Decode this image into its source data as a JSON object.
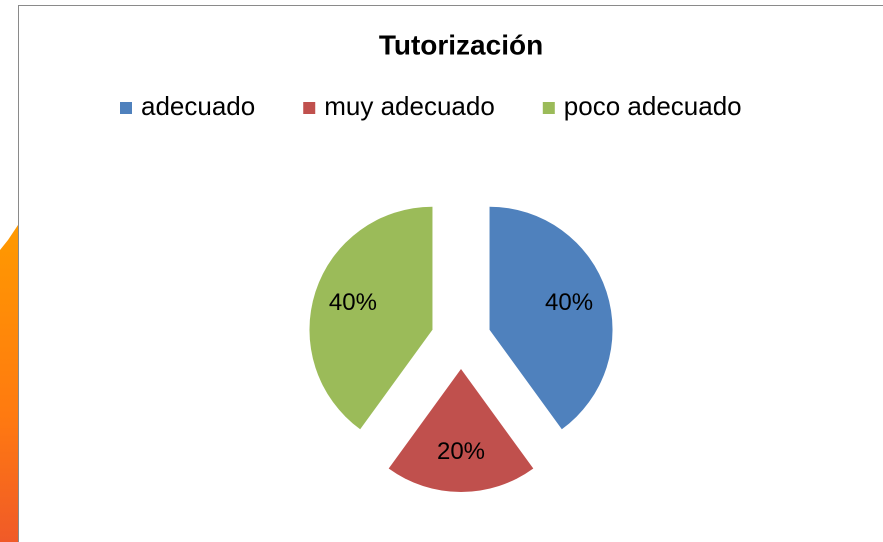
{
  "chart_data": {
    "type": "pie",
    "title": "Tutorización",
    "categories": [
      "adecuado",
      "muy adecuado",
      "poco adecuado"
    ],
    "values": [
      40,
      20,
      40
    ],
    "value_labels": [
      "40%",
      "20%",
      "40%"
    ],
    "colors": [
      "#4f81bd",
      "#c0504d",
      "#9bbb59"
    ],
    "legend": "top"
  }
}
